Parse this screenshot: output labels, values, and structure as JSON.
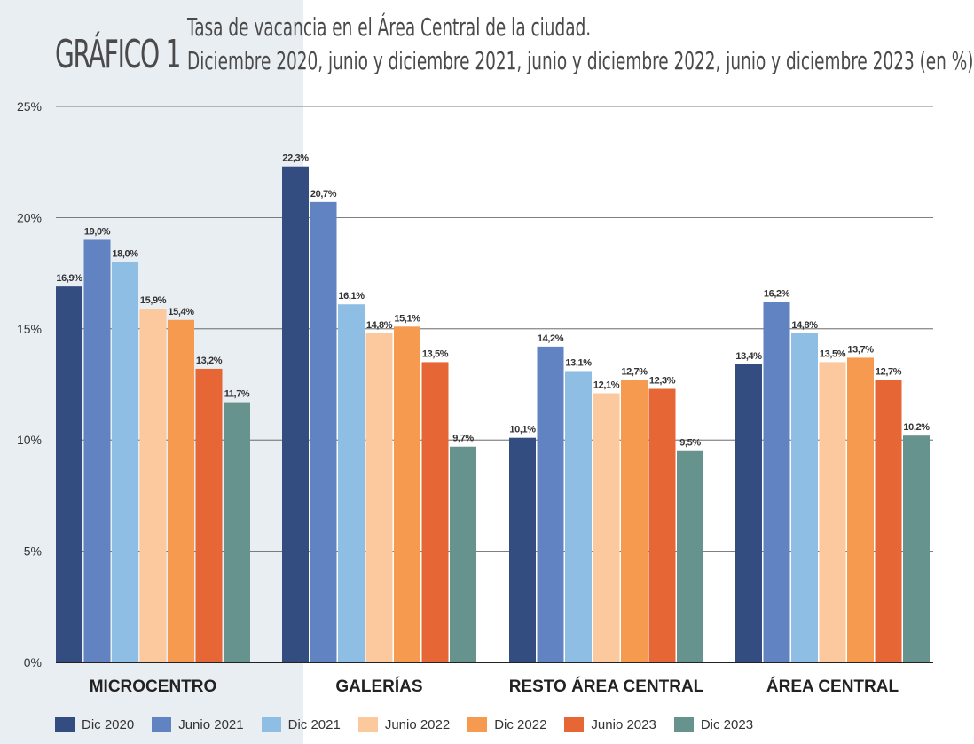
{
  "header": {
    "label": "GRÁFICO 1",
    "title": "Tasa de vacancia en el Área Central de la ciudad.",
    "subtitle": "Diciembre 2020, junio y diciembre 2021, junio y diciembre 2022, junio y diciembre 2023 (en %)"
  },
  "chart_data": {
    "type": "bar",
    "categories": [
      "MICROCENTRO",
      "GALERÍAS",
      "RESTO ÁREA CENTRAL",
      "ÁREA CENTRAL"
    ],
    "series": [
      {
        "name": "Dic 2020",
        "color": "#334d80",
        "values": [
          16.9,
          22.3,
          10.1,
          13.4
        ],
        "labels": [
          "16,9%",
          "22,3%",
          "10,1%",
          "13,4%"
        ]
      },
      {
        "name": "Junio 2021",
        "color": "#6283c1",
        "values": [
          19.0,
          20.7,
          14.2,
          16.2
        ],
        "labels": [
          "19,0%",
          "20,7%",
          "14,2%",
          "16,2%"
        ]
      },
      {
        "name": "Dic 2021",
        "color": "#8ebee4",
        "values": [
          18.0,
          16.1,
          13.1,
          14.8
        ],
        "labels": [
          "18,0%",
          "16,1%",
          "13,1%",
          "14,8%"
        ]
      },
      {
        "name": "Junio 2022",
        "color": "#fcc89d",
        "values": [
          15.9,
          14.8,
          12.1,
          13.5
        ],
        "labels": [
          "15,9%",
          "14,8%",
          "12,1%",
          "13,5%"
        ]
      },
      {
        "name": "Dic 2022",
        "color": "#f59a4e",
        "values": [
          15.4,
          15.1,
          12.7,
          13.7
        ],
        "labels": [
          "15,4%",
          "15,1%",
          "12,7%",
          "13,7%"
        ]
      },
      {
        "name": "Junio 2023",
        "color": "#e66636",
        "values": [
          13.2,
          13.5,
          12.3,
          12.7
        ],
        "labels": [
          "13,2%",
          "13,5%",
          "12,3%",
          "12,7%"
        ]
      },
      {
        "name": "Dic 2023",
        "color": "#67938e",
        "values": [
          11.7,
          9.7,
          9.5,
          10.2
        ],
        "labels": [
          "11,7%",
          "9,7%",
          "9,5%",
          "10,2%"
        ]
      }
    ],
    "ylim": [
      0,
      25
    ],
    "yticks": [
      0,
      5,
      10,
      15,
      20,
      25
    ],
    "ytick_labels": [
      "0%",
      "5%",
      "10%",
      "15%",
      "20%",
      "25%"
    ],
    "grid": true,
    "legend_position": "bottom"
  }
}
